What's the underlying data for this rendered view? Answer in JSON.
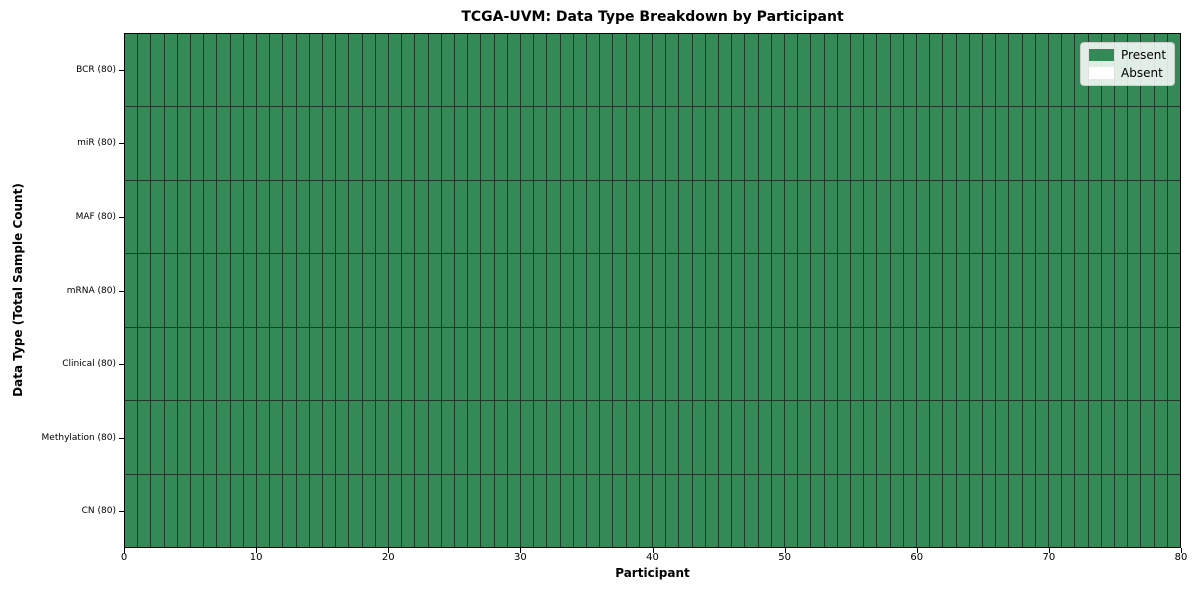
{
  "figure": {
    "title": "TCGA-UVM: Data Type Breakdown by Participant",
    "xlabel": "Participant",
    "ylabel": "Data Type (Total Sample Count)"
  },
  "legend": {
    "items": [
      {
        "label": "Present",
        "color": "#338a57"
      },
      {
        "label": "Absent",
        "color": "#ffffff"
      }
    ]
  },
  "colors": {
    "present": "#338a57",
    "absent": "#ffffff",
    "cell_edge": "#1d3a29",
    "spine": "#000000"
  },
  "chart_data": {
    "type": "heatmap",
    "title": "TCGA-UVM: Data Type Breakdown by Participant",
    "xlabel": "Participant",
    "ylabel": "Data Type (Total Sample Count)",
    "n_participants": 80,
    "x_range": [
      0,
      80
    ],
    "x_ticks": [
      0,
      10,
      20,
      30,
      40,
      50,
      60,
      70,
      80
    ],
    "legend_position": "upper right",
    "grid": false,
    "value_legend": {
      "1": "Present",
      "0": "Absent"
    },
    "rows": [
      {
        "label": "BCR (80)",
        "total": 80,
        "values": [
          1,
          1,
          1,
          1,
          1,
          1,
          1,
          1,
          1,
          1,
          1,
          1,
          1,
          1,
          1,
          1,
          1,
          1,
          1,
          1,
          1,
          1,
          1,
          1,
          1,
          1,
          1,
          1,
          1,
          1,
          1,
          1,
          1,
          1,
          1,
          1,
          1,
          1,
          1,
          1,
          1,
          1,
          1,
          1,
          1,
          1,
          1,
          1,
          1,
          1,
          1,
          1,
          1,
          1,
          1,
          1,
          1,
          1,
          1,
          1,
          1,
          1,
          1,
          1,
          1,
          1,
          1,
          1,
          1,
          1,
          1,
          1,
          1,
          1,
          1,
          1,
          1,
          1,
          1,
          1
        ]
      },
      {
        "label": "miR (80)",
        "total": 80,
        "values": [
          1,
          1,
          1,
          1,
          1,
          1,
          1,
          1,
          1,
          1,
          1,
          1,
          1,
          1,
          1,
          1,
          1,
          1,
          1,
          1,
          1,
          1,
          1,
          1,
          1,
          1,
          1,
          1,
          1,
          1,
          1,
          1,
          1,
          1,
          1,
          1,
          1,
          1,
          1,
          1,
          1,
          1,
          1,
          1,
          1,
          1,
          1,
          1,
          1,
          1,
          1,
          1,
          1,
          1,
          1,
          1,
          1,
          1,
          1,
          1,
          1,
          1,
          1,
          1,
          1,
          1,
          1,
          1,
          1,
          1,
          1,
          1,
          1,
          1,
          1,
          1,
          1,
          1,
          1,
          1
        ]
      },
      {
        "label": "MAF (80)",
        "total": 80,
        "values": [
          1,
          1,
          1,
          1,
          1,
          1,
          1,
          1,
          1,
          1,
          1,
          1,
          1,
          1,
          1,
          1,
          1,
          1,
          1,
          1,
          1,
          1,
          1,
          1,
          1,
          1,
          1,
          1,
          1,
          1,
          1,
          1,
          1,
          1,
          1,
          1,
          1,
          1,
          1,
          1,
          1,
          1,
          1,
          1,
          1,
          1,
          1,
          1,
          1,
          1,
          1,
          1,
          1,
          1,
          1,
          1,
          1,
          1,
          1,
          1,
          1,
          1,
          1,
          1,
          1,
          1,
          1,
          1,
          1,
          1,
          1,
          1,
          1,
          1,
          1,
          1,
          1,
          1,
          1,
          1
        ]
      },
      {
        "label": "mRNA (80)",
        "total": 80,
        "values": [
          1,
          1,
          1,
          1,
          1,
          1,
          1,
          1,
          1,
          1,
          1,
          1,
          1,
          1,
          1,
          1,
          1,
          1,
          1,
          1,
          1,
          1,
          1,
          1,
          1,
          1,
          1,
          1,
          1,
          1,
          1,
          1,
          1,
          1,
          1,
          1,
          1,
          1,
          1,
          1,
          1,
          1,
          1,
          1,
          1,
          1,
          1,
          1,
          1,
          1,
          1,
          1,
          1,
          1,
          1,
          1,
          1,
          1,
          1,
          1,
          1,
          1,
          1,
          1,
          1,
          1,
          1,
          1,
          1,
          1,
          1,
          1,
          1,
          1,
          1,
          1,
          1,
          1,
          1,
          1
        ]
      },
      {
        "label": "Clinical (80)",
        "total": 80,
        "values": [
          1,
          1,
          1,
          1,
          1,
          1,
          1,
          1,
          1,
          1,
          1,
          1,
          1,
          1,
          1,
          1,
          1,
          1,
          1,
          1,
          1,
          1,
          1,
          1,
          1,
          1,
          1,
          1,
          1,
          1,
          1,
          1,
          1,
          1,
          1,
          1,
          1,
          1,
          1,
          1,
          1,
          1,
          1,
          1,
          1,
          1,
          1,
          1,
          1,
          1,
          1,
          1,
          1,
          1,
          1,
          1,
          1,
          1,
          1,
          1,
          1,
          1,
          1,
          1,
          1,
          1,
          1,
          1,
          1,
          1,
          1,
          1,
          1,
          1,
          1,
          1,
          1,
          1,
          1,
          1
        ]
      },
      {
        "label": "Methylation (80)",
        "total": 80,
        "values": [
          1,
          1,
          1,
          1,
          1,
          1,
          1,
          1,
          1,
          1,
          1,
          1,
          1,
          1,
          1,
          1,
          1,
          1,
          1,
          1,
          1,
          1,
          1,
          1,
          1,
          1,
          1,
          1,
          1,
          1,
          1,
          1,
          1,
          1,
          1,
          1,
          1,
          1,
          1,
          1,
          1,
          1,
          1,
          1,
          1,
          1,
          1,
          1,
          1,
          1,
          1,
          1,
          1,
          1,
          1,
          1,
          1,
          1,
          1,
          1,
          1,
          1,
          1,
          1,
          1,
          1,
          1,
          1,
          1,
          1,
          1,
          1,
          1,
          1,
          1,
          1,
          1,
          1,
          1,
          1
        ]
      },
      {
        "label": "CN (80)",
        "total": 80,
        "values": [
          1,
          1,
          1,
          1,
          1,
          1,
          1,
          1,
          1,
          1,
          1,
          1,
          1,
          1,
          1,
          1,
          1,
          1,
          1,
          1,
          1,
          1,
          1,
          1,
          1,
          1,
          1,
          1,
          1,
          1,
          1,
          1,
          1,
          1,
          1,
          1,
          1,
          1,
          1,
          1,
          1,
          1,
          1,
          1,
          1,
          1,
          1,
          1,
          1,
          1,
          1,
          1,
          1,
          1,
          1,
          1,
          1,
          1,
          1,
          1,
          1,
          1,
          1,
          1,
          1,
          1,
          1,
          1,
          1,
          1,
          1,
          1,
          1,
          1,
          1,
          1,
          1,
          1,
          1,
          1
        ]
      }
    ]
  }
}
